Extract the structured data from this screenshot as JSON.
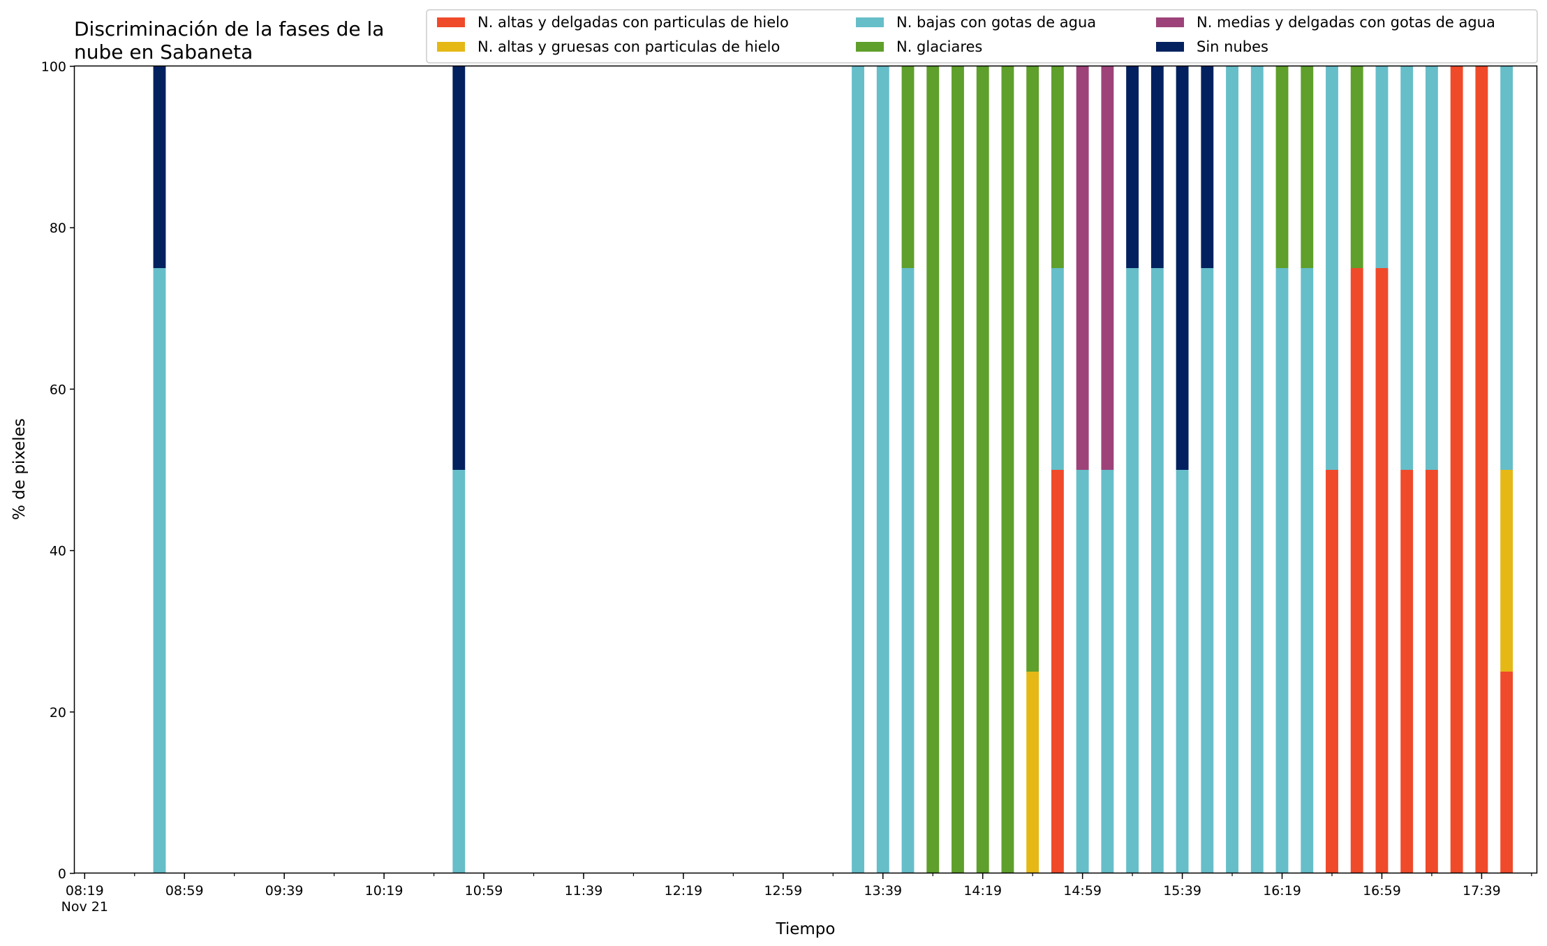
{
  "chart_data": {
    "type": "bar",
    "stacked": true,
    "title_lines": [
      "Discriminación de la fases de la",
      "nube en Sabaneta"
    ],
    "xlabel": "Tiempo",
    "ylabel": "% de pixeles",
    "ylim": [
      0,
      100
    ],
    "xlim": [
      "08:15",
      "18:01"
    ],
    "grid": false,
    "legend_position": "top",
    "y_ticks": [
      "0",
      "20",
      "40",
      "60",
      "80",
      "100"
    ],
    "x_tick_labels": [
      {
        "time": "08:19",
        "label": "08:19",
        "sub": "Nov 21"
      },
      {
        "time": "08:59",
        "label": "08:59"
      },
      {
        "time": "09:39",
        "label": "09:39"
      },
      {
        "time": "10:19",
        "label": "10:19"
      },
      {
        "time": "10:59",
        "label": "10:59"
      },
      {
        "time": "11:39",
        "label": "11:39"
      },
      {
        "time": "12:19",
        "label": "12:19"
      },
      {
        "time": "12:59",
        "label": "12:59"
      },
      {
        "time": "13:39",
        "label": "13:39"
      },
      {
        "time": "14:19",
        "label": "14:19"
      },
      {
        "time": "14:59",
        "label": "14:59"
      },
      {
        "time": "15:39",
        "label": "15:39"
      },
      {
        "time": "16:19",
        "label": "16:19"
      },
      {
        "time": "16:59",
        "label": "16:59"
      },
      {
        "time": "17:39",
        "label": "17:39"
      }
    ],
    "series": [
      {
        "name": "N. altas y delgadas con particulas de hielo",
        "color": "#ef4a2a"
      },
      {
        "name": "N. altas y gruesas con particulas de hielo",
        "color": "#e5b816"
      },
      {
        "name": "N. bajas con gotas de agua",
        "color": "#66bec9"
      },
      {
        "name": "N. glaciares",
        "color": "#5f9f2b"
      },
      {
        "name": "N. medias y delgadas con gotas de agua",
        "color": "#9d4379"
      },
      {
        "name": "Sin nubes",
        "color": "#03215f"
      }
    ],
    "bars": [
      {
        "time": "08:49",
        "values": [
          0,
          0,
          75,
          0,
          0,
          25
        ]
      },
      {
        "time": "10:49",
        "values": [
          0,
          0,
          50,
          0,
          0,
          50
        ]
      },
      {
        "time": "13:29",
        "values": [
          0,
          0,
          100,
          0,
          0,
          0
        ]
      },
      {
        "time": "13:39",
        "values": [
          0,
          0,
          100,
          0,
          0,
          0
        ]
      },
      {
        "time": "13:49",
        "values": [
          0,
          0,
          75,
          25,
          0,
          0
        ]
      },
      {
        "time": "13:59",
        "values": [
          0,
          0,
          0,
          100,
          0,
          0
        ]
      },
      {
        "time": "14:09",
        "values": [
          0,
          0,
          0,
          100,
          0,
          0
        ]
      },
      {
        "time": "14:19",
        "values": [
          0,
          0,
          0,
          100,
          0,
          0
        ]
      },
      {
        "time": "14:29",
        "values": [
          0,
          0,
          0,
          100,
          0,
          0
        ]
      },
      {
        "time": "14:39",
        "values": [
          0,
          25,
          0,
          75,
          0,
          0
        ]
      },
      {
        "time": "14:49",
        "values": [
          50,
          0,
          25,
          25,
          0,
          0
        ]
      },
      {
        "time": "14:59",
        "values": [
          0,
          0,
          50,
          0,
          50,
          0
        ]
      },
      {
        "time": "15:09",
        "values": [
          0,
          0,
          50,
          0,
          50,
          0
        ]
      },
      {
        "time": "15:19",
        "values": [
          0,
          0,
          75,
          0,
          0,
          25
        ]
      },
      {
        "time": "15:29",
        "values": [
          0,
          0,
          75,
          0,
          0,
          25
        ]
      },
      {
        "time": "15:39",
        "values": [
          0,
          0,
          50,
          0,
          0,
          50
        ]
      },
      {
        "time": "15:49",
        "values": [
          0,
          0,
          75,
          0,
          0,
          25
        ]
      },
      {
        "time": "15:59",
        "values": [
          0,
          0,
          100,
          0,
          0,
          0
        ]
      },
      {
        "time": "16:09",
        "values": [
          0,
          0,
          100,
          0,
          0,
          0
        ]
      },
      {
        "time": "16:19",
        "values": [
          0,
          0,
          75,
          25,
          0,
          0
        ]
      },
      {
        "time": "16:29",
        "values": [
          0,
          0,
          75,
          25,
          0,
          0
        ]
      },
      {
        "time": "16:39",
        "values": [
          50,
          0,
          50,
          0,
          0,
          0
        ]
      },
      {
        "time": "16:49",
        "values": [
          75,
          0,
          0,
          25,
          0,
          0
        ]
      },
      {
        "time": "16:59",
        "values": [
          75,
          0,
          25,
          0,
          0,
          0
        ]
      },
      {
        "time": "17:09",
        "values": [
          50,
          0,
          50,
          0,
          0,
          0
        ]
      },
      {
        "time": "17:19",
        "values": [
          50,
          0,
          50,
          0,
          0,
          0
        ]
      },
      {
        "time": "17:29",
        "values": [
          100,
          0,
          0,
          0,
          0,
          0
        ]
      },
      {
        "time": "17:39",
        "values": [
          100,
          0,
          0,
          0,
          0,
          0
        ]
      },
      {
        "time": "17:49",
        "values": [
          25,
          25,
          50,
          0,
          0,
          0
        ]
      }
    ]
  }
}
